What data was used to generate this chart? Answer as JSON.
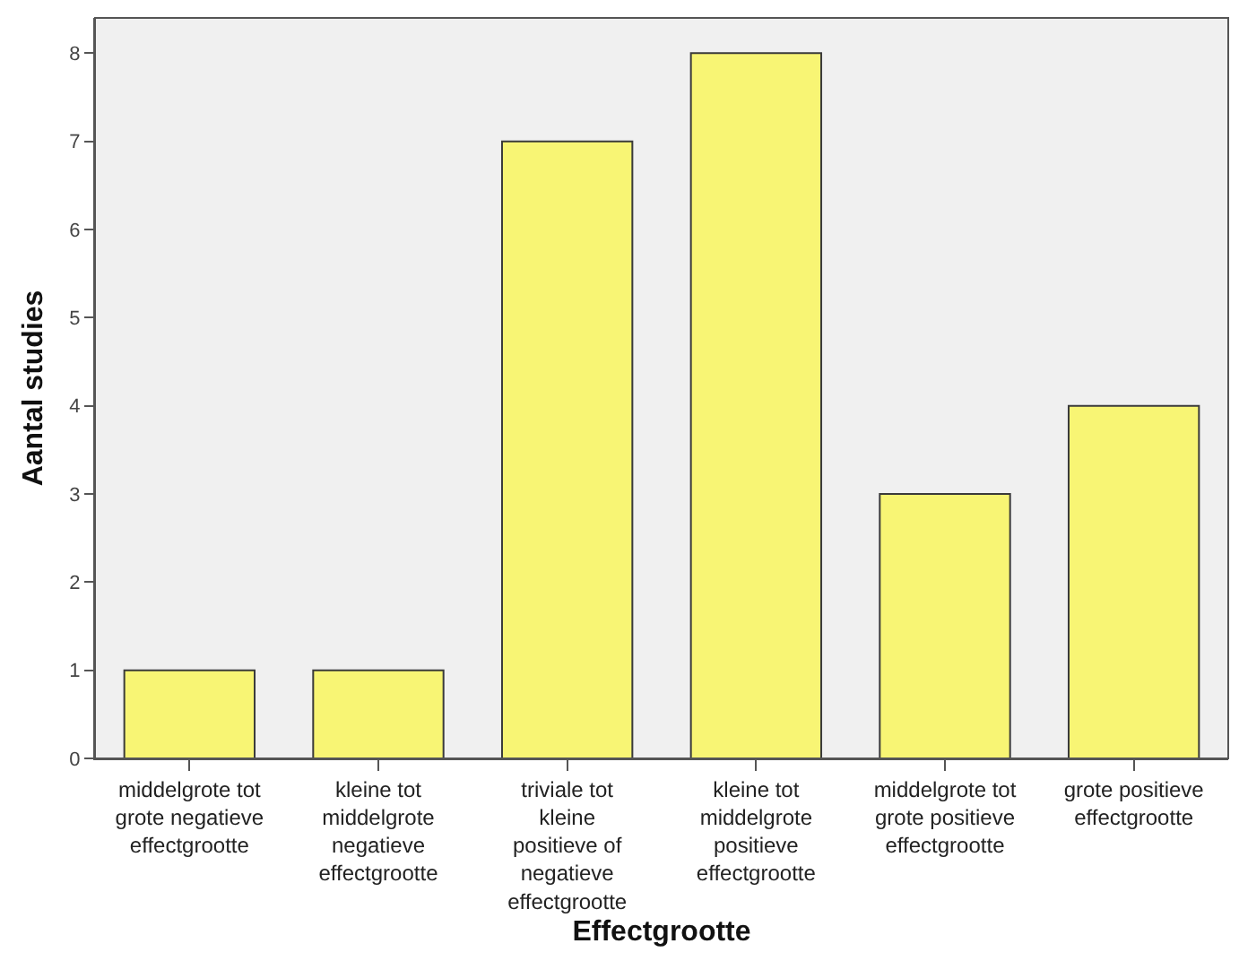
{
  "chart_data": {
    "type": "bar",
    "xlabel": "Effectgrootte",
    "ylabel": "Aantal studies",
    "categories": [
      "middelgrote tot grote negatieve effectgrootte",
      "kleine tot middelgrote negatieve effectgrootte",
      "triviale tot kleine positieve of negatieve effectgrootte",
      "kleine tot middelgrote positieve effectgrootte",
      "middelgrote tot grote positieve effectgrootte",
      "grote positieve effectgrootte"
    ],
    "values": [
      1,
      1,
      7,
      8,
      3,
      4
    ],
    "color": "#f8f574",
    "ylim": [
      0,
      8.4
    ],
    "yticks": [
      0,
      1,
      2,
      3,
      4,
      5,
      6,
      7,
      8
    ],
    "grid": false
  }
}
